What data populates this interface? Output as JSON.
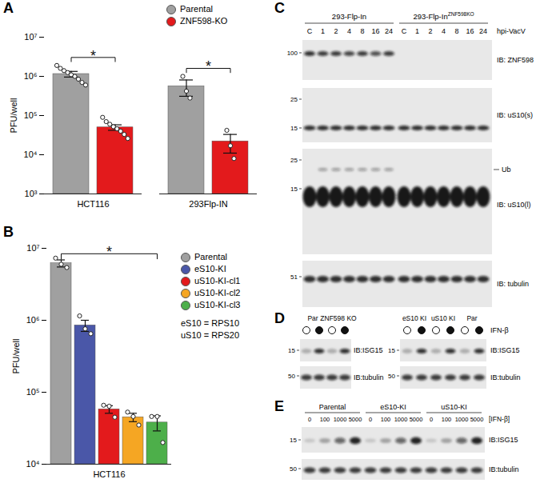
{
  "chart_data": [
    {
      "type": "bar",
      "title": "A",
      "y_label": "PFU/well",
      "log": "y",
      "legend": "top-right",
      "categories": [
        "HCT116",
        "293Flp-IN"
      ],
      "series": [
        {
          "name": "Parental",
          "color": "#a0a0a0",
          "values": [
            1150000,
            560000
          ],
          "errors": [
            190000,
            250000
          ],
          "points": [
            [
              1900000,
              1600000,
              1400000,
              1250000,
              1100000,
              1000000,
              850000,
              700000,
              600000
            ],
            [
              1000000,
              420000,
              280000
            ]
          ]
        },
        {
          "name": "ZNF598-KO",
          "color": "#e31a1c",
          "values": [
            50000,
            22000
          ],
          "errors": [
            8000,
            11000
          ],
          "points": [
            [
              90000,
              70000,
              60000,
              52000,
              46000,
              40000,
              33000,
              26000
            ],
            [
              42000,
              17000,
              8000
            ]
          ]
        }
      ],
      "ylim": [
        1000,
        10000000
      ],
      "yticks": [
        {
          "value": 1000,
          "label": "10³"
        },
        {
          "value": 10000,
          "label": "10⁴"
        },
        {
          "value": 100000,
          "label": "10⁵"
        },
        {
          "value": 1000000,
          "label": "10⁶"
        },
        {
          "value": 10000000,
          "label": "10⁷"
        }
      ],
      "annotations": [
        {
          "text": "*",
          "category": "HCT116",
          "from": "Parental",
          "to": "ZNF598-KO"
        },
        {
          "text": "*",
          "category": "293Flp-IN",
          "from": "Parental",
          "to": "ZNF598-KO"
        }
      ]
    },
    {
      "type": "bar",
      "title": "B",
      "y_label": "PFU/well",
      "log": "y",
      "legend": "right",
      "categories": [
        "HCT116"
      ],
      "series": [
        {
          "name": "Parental",
          "color": "#a0a0a0",
          "values": [
            6200000
          ],
          "errors": [
            700000
          ],
          "points": [
            [
              7300000,
              6000000,
              5400000
            ]
          ]
        },
        {
          "name": "eS10-KI",
          "color": "#4a57a8",
          "values": [
            850000
          ],
          "errors": [
            150000
          ],
          "points": [
            [
              1150000,
              760000,
              650000
            ]
          ]
        },
        {
          "name": "uS10-KI-cl1",
          "color": "#e31a1c",
          "values": [
            58000
          ],
          "errors": [
            7000
          ],
          "points": [
            [
              66000,
              64000,
              45000
            ]
          ]
        },
        {
          "name": "uS10-KI-cl2",
          "color": "#f5a623",
          "values": [
            45000
          ],
          "errors": [
            6000
          ],
          "points": [
            [
              53000,
              46000,
              35000
            ]
          ]
        },
        {
          "name": "uS10-KI-cl3",
          "color": "#4daf4a",
          "values": [
            38000
          ],
          "errors": [
            9000
          ],
          "points": [
            [
              46000,
              46000,
              20000
            ]
          ]
        }
      ],
      "ylim": [
        10000,
        10000000
      ],
      "yticks": [
        {
          "value": 10000,
          "label": "10⁴"
        },
        {
          "value": 100000,
          "label": "10⁵"
        },
        {
          "value": 1000000,
          "label": "10⁶"
        },
        {
          "value": 10000000,
          "label": "10⁷"
        }
      ],
      "notes": [
        "eS10 = RPS10",
        "uS10 = RPS20"
      ],
      "annotations": [
        {
          "text": "*",
          "category": "HCT116",
          "from": "Parental",
          "to": "uS10-KI-cl3"
        }
      ]
    }
  ],
  "blots": [
    {
      "title": "C",
      "groups": [
        {
          "text": "293-Flp-In"
        },
        {
          "text": "293-Flp-In",
          "superscript": "ZNF598KO"
        }
      ],
      "lanes": [
        "C",
        "1",
        "2",
        "4",
        "8",
        "16",
        "24"
      ],
      "lanes_label": "hpi-VacV",
      "rows": [
        {
          "label": "IB: ZNF598",
          "markers": [
            100
          ]
        },
        {
          "label": "IB: uS10(s)",
          "markers": [
            25,
            15
          ]
        },
        {
          "label": "IB: uS10(l)",
          "markers": [
            25,
            15
          ],
          "annotation": "Ub"
        },
        {
          "label": "IB: tubulin",
          "markers": [
            51
          ]
        }
      ]
    },
    {
      "title": "D",
      "treatment": "IFN-β",
      "blots": [
        {
          "groups": [
            "Par",
            "ZNF598 KO"
          ],
          "rows": [
            {
              "label": "IB:ISG15",
              "markers": [
                15
              ]
            },
            {
              "label": "IB:tubulin",
              "markers": [
                50
              ]
            }
          ]
        },
        {
          "groups": [
            "eS10 KI",
            "uS10 KI",
            "Par"
          ],
          "rows": [
            {
              "label": "IB:ISG15",
              "markers": [
                15
              ]
            },
            {
              "label": "IB:tubulin",
              "markers": [
                50
              ]
            }
          ]
        }
      ]
    },
    {
      "title": "E",
      "groups": [
        "Parental",
        "eS10-KI",
        "uS10-KI"
      ],
      "doses": [
        0,
        100,
        1000,
        5000
      ],
      "dose_label": "[IFN-β]",
      "rows": [
        {
          "label": "IB:ISG15",
          "markers": [
            15
          ]
        },
        {
          "label": "IB:tubulin",
          "markers": [
            50
          ]
        }
      ]
    }
  ]
}
